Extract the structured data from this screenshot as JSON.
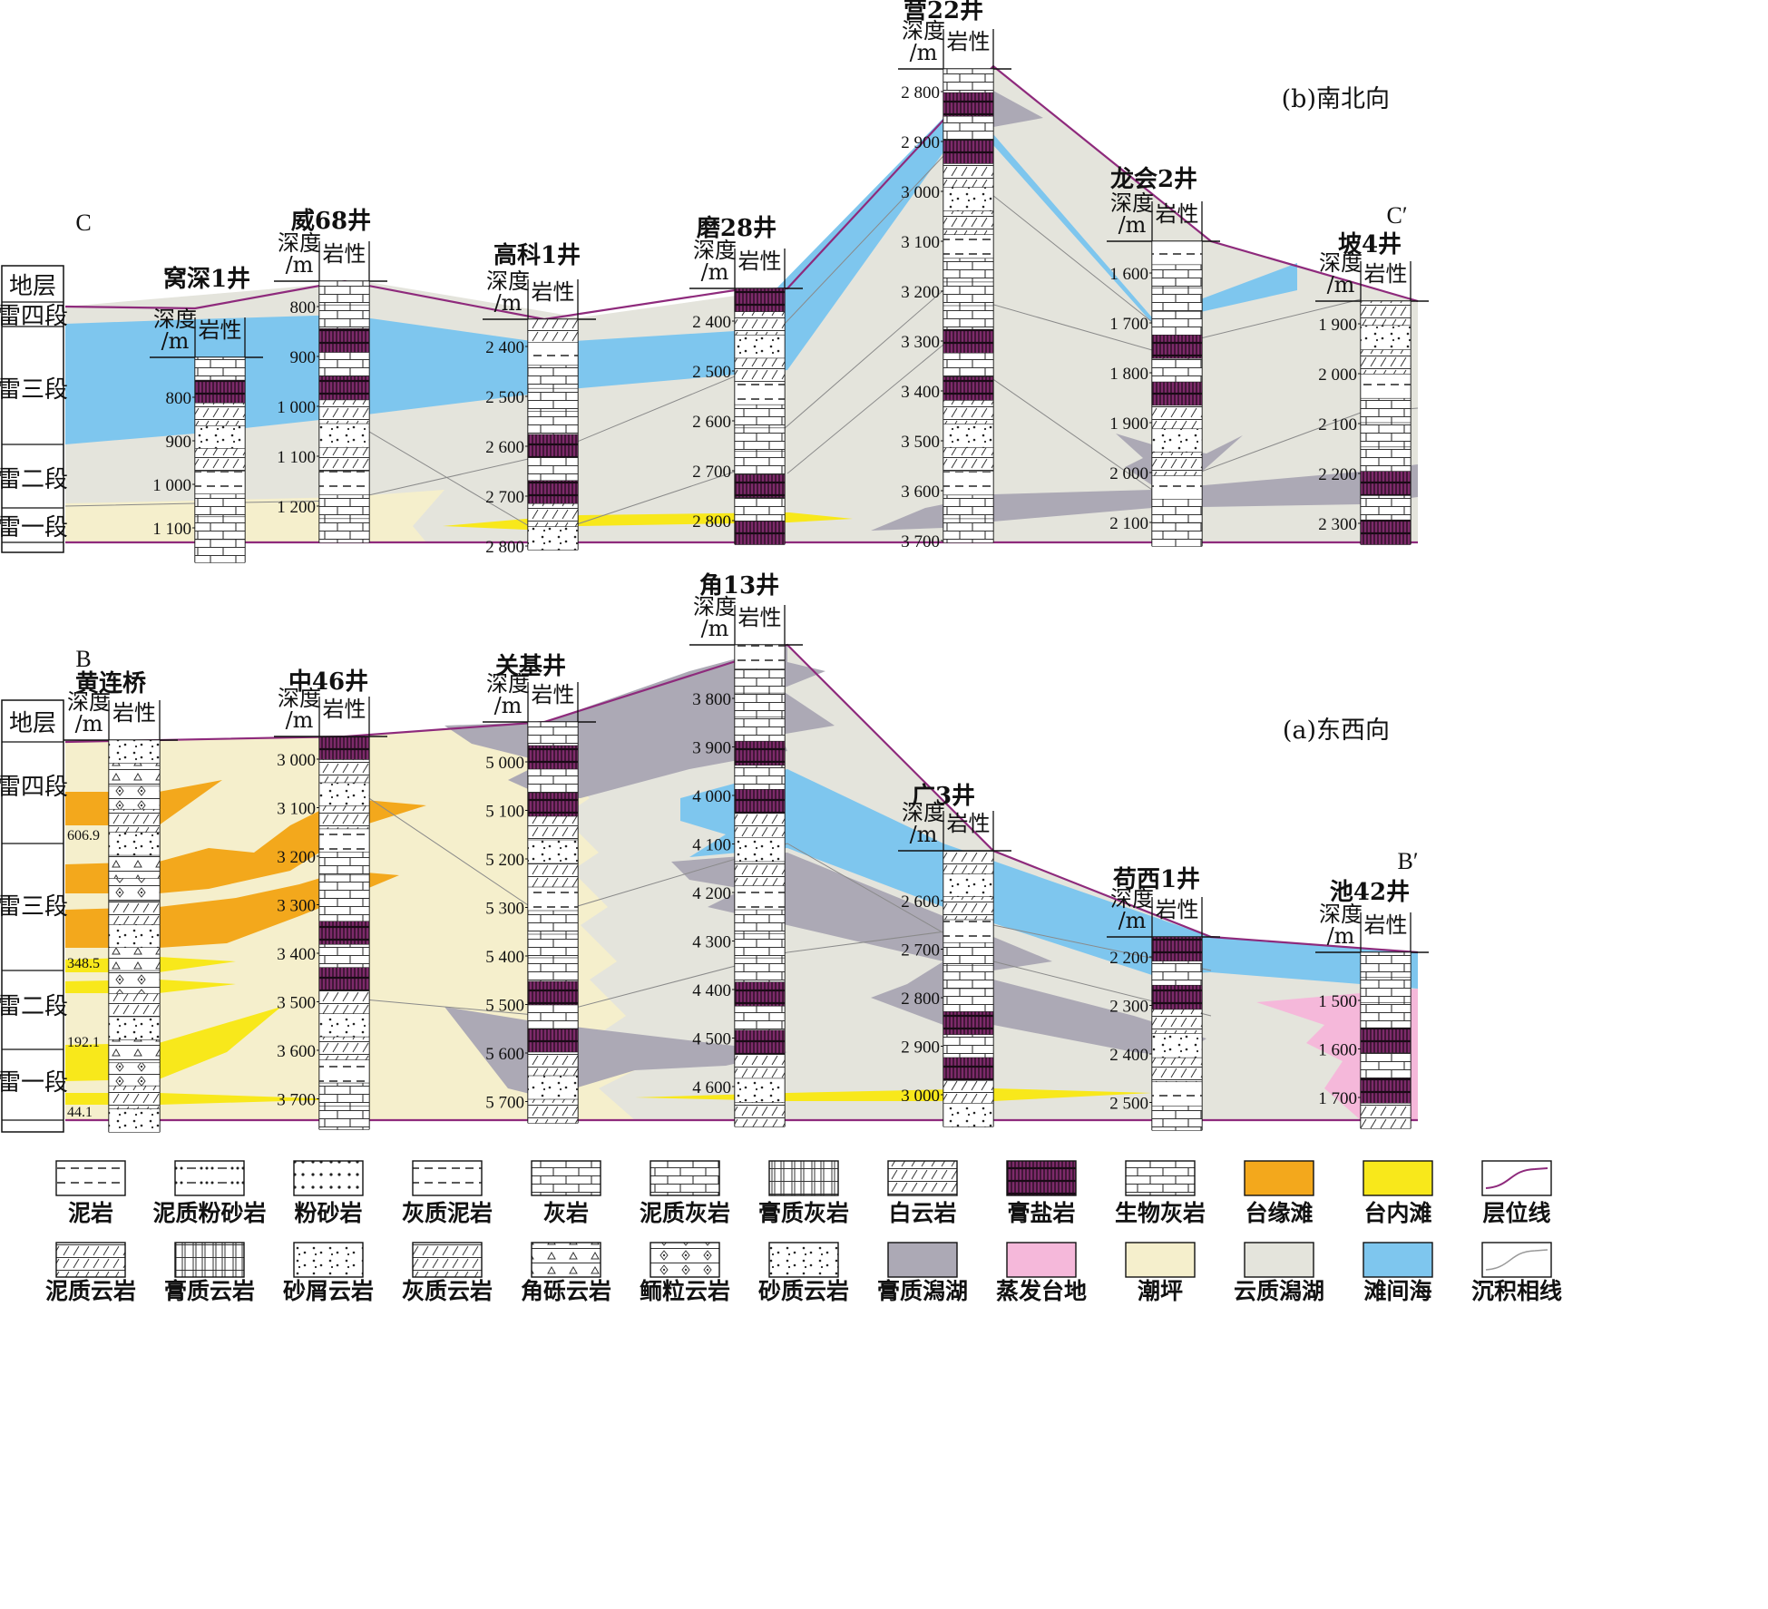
{
  "colors": {
    "gypsum_lagoon": "#aca9b5",
    "evaporite_platform": "#f5b8da",
    "tidal_flat": "#f5efcc",
    "dolomitic_lagoon": "#e4e4dc",
    "interbank_sea": "#7ec6ee",
    "platform_margin_shoal": "#f3a81c",
    "intraplatform_shoal": "#f8e81b",
    "horizon_line": "#8e2a7c",
    "gypsum_salt": "#7d2a6a"
  },
  "section_b": {
    "panel_label": "(b)南北向",
    "start_label": "C",
    "end_label": "C′",
    "strata_header": "地层",
    "strata": [
      "雷四段",
      "雷三段",
      "雷二段",
      "雷一段"
    ],
    "wells": [
      {
        "name": "窝深1井",
        "depth_header": "深度\n/m",
        "lith_header": "岩性",
        "depths": [
          "800",
          "900",
          "1 000",
          "1 100"
        ]
      },
      {
        "name": "威68井",
        "depth_header": "深度\n/m",
        "lith_header": "岩性",
        "depths": [
          "800",
          "900",
          "1 000",
          "1 100",
          "1 200"
        ]
      },
      {
        "name": "高科1井",
        "depth_header": "深度\n/m",
        "lith_header": "岩性",
        "depths": [
          "2 400",
          "2 500",
          "2 600",
          "2 700",
          "2 800"
        ]
      },
      {
        "name": "磨28井",
        "depth_header": "深度\n/m",
        "lith_header": "岩性",
        "depths": [
          "2 400",
          "2 500",
          "2 600",
          "2 700",
          "2 800"
        ]
      },
      {
        "name": "营22井",
        "depth_header": "深度\n/m",
        "lith_header": "岩性",
        "depths": [
          "2 800",
          "2 900",
          "3 000",
          "3 100",
          "3 200",
          "3 300",
          "3 400",
          "3 500",
          "3 600",
          "3 700"
        ]
      },
      {
        "name": "龙会2井",
        "depth_header": "深度\n/m",
        "lith_header": "岩性",
        "depths": [
          "1 600",
          "1 700",
          "1 800",
          "1 900",
          "2 000",
          "2 100"
        ]
      },
      {
        "name": "坡4井",
        "depth_header": "深度\n/m",
        "lith_header": "岩性",
        "depths": [
          "1 900",
          "2 000",
          "2 100",
          "2 200",
          "2 300"
        ]
      }
    ]
  },
  "section_a": {
    "panel_label": "(a)东西向",
    "start_label": "B",
    "end_label": "B′",
    "strata_header": "地层",
    "strata": [
      "雷四段",
      "雷三段",
      "雷二段",
      "雷一段"
    ],
    "boundary_marks": [
      "606.9",
      "348.5",
      "192.1",
      "44.1"
    ],
    "wells": [
      {
        "name": "黄连桥",
        "depth_header": "深度\n/m",
        "lith_header": "岩性",
        "depths": []
      },
      {
        "name": "中46井",
        "depth_header": "深度\n/m",
        "lith_header": "岩性",
        "depths": [
          "3 000",
          "3 100",
          "3 200",
          "3 300",
          "3 400",
          "3 500",
          "3 600",
          "3 700"
        ]
      },
      {
        "name": "关基井",
        "depth_header": "深度\n/m",
        "lith_header": "岩性",
        "depths": [
          "5 000",
          "5 100",
          "5 200",
          "5 300",
          "5 400",
          "5 500",
          "5 600",
          "5 700"
        ]
      },
      {
        "name": "角13井",
        "depth_header": "深度\n/m",
        "lith_header": "岩性",
        "depths": [
          "3 800",
          "3 900",
          "4 000",
          "4 100",
          "4 200",
          "4 300",
          "4 400",
          "4 500",
          "4 600"
        ]
      },
      {
        "name": "广3井",
        "depth_header": "深度\n/m",
        "lith_header": "岩性",
        "depths": [
          "2 600",
          "2 700",
          "2 800",
          "2 900",
          "3 000"
        ]
      },
      {
        "name": "苟西1井",
        "depth_header": "深度\n/m",
        "lith_header": "岩性",
        "depths": [
          "2 200",
          "2 300",
          "2 400",
          "2 500"
        ]
      },
      {
        "name": "池42井",
        "depth_header": "深度\n/m",
        "lith_header": "岩性",
        "depths": [
          "1 500",
          "1 600",
          "1 700"
        ]
      }
    ]
  },
  "legend": {
    "row1": [
      {
        "label": "泥岩",
        "swatch": "mudstone"
      },
      {
        "label": "泥质粉砂岩",
        "swatch": "argillaceous-siltstone"
      },
      {
        "label": "粉砂岩",
        "swatch": "siltstone"
      },
      {
        "label": "灰质泥岩",
        "swatch": "calcareous-mudstone"
      },
      {
        "label": "灰岩",
        "swatch": "limestone"
      },
      {
        "label": "泥质灰岩",
        "swatch": "argillaceous-limestone"
      },
      {
        "label": "膏质灰岩",
        "swatch": "gypsiferous-limestone"
      },
      {
        "label": "白云岩",
        "swatch": "dolomite"
      },
      {
        "label": "膏盐岩",
        "swatch": "gypsum-salt"
      },
      {
        "label": "生物灰岩",
        "swatch": "bioclastic-limestone"
      },
      {
        "label": "台缘滩",
        "swatch": "platform-margin-shoal"
      },
      {
        "label": "台内滩",
        "swatch": "intraplatform-shoal"
      },
      {
        "label": "层位线",
        "swatch": "horizon-line"
      }
    ],
    "row2": [
      {
        "label": "泥质云岩",
        "swatch": "argillaceous-dolomite"
      },
      {
        "label": "膏质云岩",
        "swatch": "gypsiferous-dolomite"
      },
      {
        "label": "砂屑云岩",
        "swatch": "sandy-dolomite"
      },
      {
        "label": "灰质云岩",
        "swatch": "calcareous-dolomite"
      },
      {
        "label": "角砾云岩",
        "swatch": "breccia-dolomite"
      },
      {
        "label": "鲕粒云岩",
        "swatch": "oolitic-dolomite"
      },
      {
        "label": "砂质云岩",
        "swatch": "arenaceous-dolomite"
      },
      {
        "label": "膏质潟湖",
        "swatch": "gypsum-lagoon"
      },
      {
        "label": "蒸发台地",
        "swatch": "evaporite-platform"
      },
      {
        "label": "潮坪",
        "swatch": "tidal-flat"
      },
      {
        "label": "云质潟湖",
        "swatch": "dolomitic-lagoon"
      },
      {
        "label": "滩间海",
        "swatch": "interbank-sea"
      },
      {
        "label": "沉积相线",
        "swatch": "facies-line"
      }
    ]
  }
}
